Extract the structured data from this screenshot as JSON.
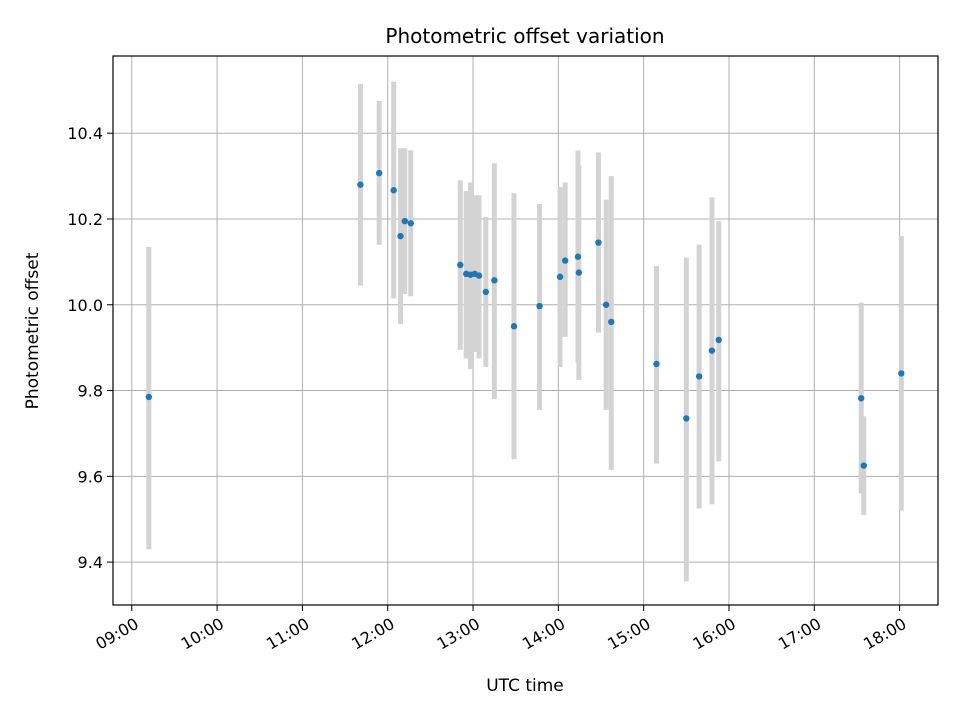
{
  "chart_data": {
    "type": "scatter",
    "title": "Photometric offset variation",
    "xlabel": "UTC time",
    "ylabel": "Photometric offset",
    "x_unit": "hours UTC",
    "xlim": [
      8.78,
      18.45
    ],
    "ylim": [
      9.3,
      10.58
    ],
    "x_ticks": [
      {
        "value": 9,
        "label": "09:00"
      },
      {
        "value": 10,
        "label": "10:00"
      },
      {
        "value": 11,
        "label": "11:00"
      },
      {
        "value": 12,
        "label": "12:00"
      },
      {
        "value": 13,
        "label": "13:00"
      },
      {
        "value": 14,
        "label": "14:00"
      },
      {
        "value": 15,
        "label": "15:00"
      },
      {
        "value": 16,
        "label": "16:00"
      },
      {
        "value": 17,
        "label": "17:00"
      },
      {
        "value": 18,
        "label": "18:00"
      }
    ],
    "y_ticks": [
      {
        "value": 9.4,
        "label": "9.4"
      },
      {
        "value": 9.6,
        "label": "9.6"
      },
      {
        "value": 9.8,
        "label": "9.8"
      },
      {
        "value": 10.0,
        "label": "10.0"
      },
      {
        "value": 10.2,
        "label": "10.2"
      },
      {
        "value": 10.4,
        "label": "10.4"
      }
    ],
    "grid": true,
    "colors": {
      "points": "#1f77b4",
      "errorbars": "#d3d3d3",
      "grid": "#b0b0b0"
    },
    "points": [
      {
        "x": 9.2,
        "y": 9.785,
        "lo": 9.43,
        "hi": 10.135
      },
      {
        "x": 11.68,
        "y": 10.28,
        "lo": 10.045,
        "hi": 10.515
      },
      {
        "x": 11.9,
        "y": 10.307,
        "lo": 10.14,
        "hi": 10.475
      },
      {
        "x": 12.07,
        "y": 10.267,
        "lo": 10.015,
        "hi": 10.52
      },
      {
        "x": 12.15,
        "y": 10.16,
        "lo": 9.955,
        "hi": 10.365
      },
      {
        "x": 12.2,
        "y": 10.195,
        "lo": 10.025,
        "hi": 10.365
      },
      {
        "x": 12.27,
        "y": 10.19,
        "lo": 10.02,
        "hi": 10.36
      },
      {
        "x": 12.85,
        "y": 10.093,
        "lo": 9.895,
        "hi": 10.29
      },
      {
        "x": 12.92,
        "y": 10.072,
        "lo": 9.875,
        "hi": 10.265
      },
      {
        "x": 12.97,
        "y": 10.07,
        "lo": 9.85,
        "hi": 10.285
      },
      {
        "x": 13.02,
        "y": 10.072,
        "lo": 9.89,
        "hi": 10.255
      },
      {
        "x": 13.07,
        "y": 10.068,
        "lo": 9.875,
        "hi": 10.255
      },
      {
        "x": 13.15,
        "y": 10.03,
        "lo": 9.855,
        "hi": 10.205
      },
      {
        "x": 13.25,
        "y": 10.057,
        "lo": 9.78,
        "hi": 10.33
      },
      {
        "x": 13.48,
        "y": 9.95,
        "lo": 9.64,
        "hi": 10.26
      },
      {
        "x": 13.78,
        "y": 9.997,
        "lo": 9.755,
        "hi": 10.235
      },
      {
        "x": 14.02,
        "y": 10.065,
        "lo": 9.855,
        "hi": 10.275
      },
      {
        "x": 14.08,
        "y": 10.103,
        "lo": 9.925,
        "hi": 10.285
      },
      {
        "x": 14.23,
        "y": 10.112,
        "lo": 9.865,
        "hi": 10.36
      },
      {
        "x": 14.24,
        "y": 10.075,
        "lo": 9.825,
        "hi": 10.325
      },
      {
        "x": 14.47,
        "y": 10.145,
        "lo": 9.935,
        "hi": 10.355
      },
      {
        "x": 14.56,
        "y": 10.0,
        "lo": 9.755,
        "hi": 10.245
      },
      {
        "x": 14.62,
        "y": 9.96,
        "lo": 9.615,
        "hi": 10.3
      },
      {
        "x": 15.15,
        "y": 9.862,
        "lo": 9.63,
        "hi": 10.09
      },
      {
        "x": 15.5,
        "y": 9.735,
        "lo": 9.355,
        "hi": 10.11
      },
      {
        "x": 15.65,
        "y": 9.833,
        "lo": 9.525,
        "hi": 10.14
      },
      {
        "x": 15.8,
        "y": 9.893,
        "lo": 9.535,
        "hi": 10.25
      },
      {
        "x": 15.88,
        "y": 9.918,
        "lo": 9.635,
        "hi": 10.195
      },
      {
        "x": 17.55,
        "y": 9.782,
        "lo": 9.56,
        "hi": 10.005
      },
      {
        "x": 17.58,
        "y": 9.625,
        "lo": 9.51,
        "hi": 9.74
      },
      {
        "x": 18.02,
        "y": 9.84,
        "lo": 9.52,
        "hi": 10.16
      }
    ]
  }
}
